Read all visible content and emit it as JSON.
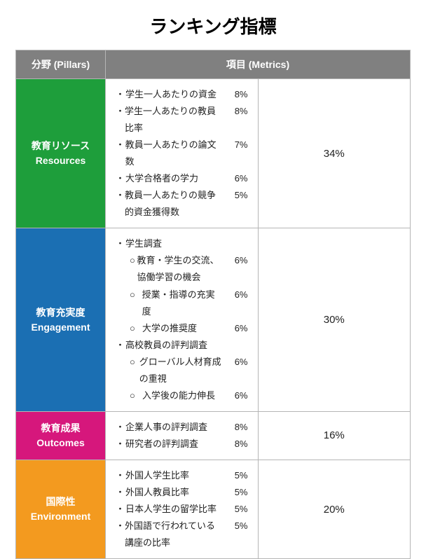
{
  "title": "ランキング指標",
  "header": {
    "pillar": "分野 (Pillars)",
    "metrics": "項目 (Metrics)"
  },
  "colors": {
    "header_bg": "#808080",
    "border": "#b5b5b5",
    "text": "#222222",
    "pillar_text": "#ffffff"
  },
  "pillars": [
    {
      "label_jp": "教育リソース",
      "label_en": "Resources",
      "bg": "#1e9e3b",
      "total": "34%",
      "metrics": [
        {
          "label": "学生一人あたりの資金",
          "pct": "8%",
          "sub": false
        },
        {
          "label": "学生一人あたりの教員比率",
          "pct": "8%",
          "sub": false
        },
        {
          "label": "教員一人あたりの論文数",
          "pct": "7%",
          "sub": false
        },
        {
          "label": "大学合格者の学力",
          "pct": "6%",
          "sub": false
        },
        {
          "label": "教員一人あたりの競争的資金獲得数",
          "pct": "5%",
          "sub": false
        }
      ]
    },
    {
      "label_jp": "教育充実度",
      "label_en": "Engagement",
      "bg": "#1b6fb3",
      "total": "30%",
      "metrics": [
        {
          "label": "学生調査",
          "pct": "",
          "sub": false
        },
        {
          "label": "教育・学生の交流、協働学習の機会",
          "pct": "6%",
          "sub": true
        },
        {
          "label": "授業・指導の充実度",
          "pct": "6%",
          "sub": true
        },
        {
          "label": "大学の推奨度",
          "pct": "6%",
          "sub": true
        },
        {
          "label": "高校教員の評判調査",
          "pct": "",
          "sub": false
        },
        {
          "label": "グローバル人材育成の重視",
          "pct": "6%",
          "sub": true
        },
        {
          "label": "入学後の能力伸長",
          "pct": "6%",
          "sub": true
        }
      ]
    },
    {
      "label_jp": "教育成果",
      "label_en": "Outcomes",
      "bg": "#d6177c",
      "total": "16%",
      "metrics": [
        {
          "label": "企業人事の評判調査",
          "pct": "8%",
          "sub": false
        },
        {
          "label": "研究者の評判調査",
          "pct": "8%",
          "sub": false
        }
      ]
    },
    {
      "label_jp": "国際性",
      "label_en": "Environment",
      "bg": "#f39a1f",
      "total": "20%",
      "metrics": [
        {
          "label": "外国人学生比率",
          "pct": "5%",
          "sub": false
        },
        {
          "label": "外国人教員比率",
          "pct": "5%",
          "sub": false
        },
        {
          "label": "日本人学生の留学比率",
          "pct": "5%",
          "sub": false
        },
        {
          "label": "外国語で行われている講座の比率",
          "pct": "5%",
          "sub": false
        }
      ]
    }
  ]
}
